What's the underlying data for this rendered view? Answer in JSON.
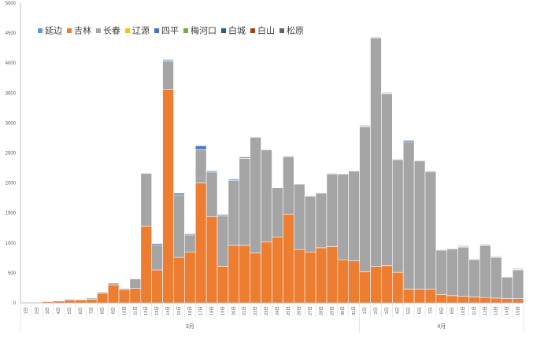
{
  "chart_data": {
    "type": "bar",
    "stacked": true,
    "ylim": [
      0,
      5000
    ],
    "yticks": [
      0,
      500,
      1000,
      1500,
      2000,
      2500,
      3000,
      3500,
      4000,
      4500,
      5000
    ],
    "grid": false,
    "legend_position": "top-left",
    "categories": [
      "1日",
      "2日",
      "3日",
      "4日",
      "5日",
      "6日",
      "7日",
      "8日",
      "9日",
      "10日",
      "11日",
      "12日",
      "13日",
      "14日",
      "15日",
      "16日",
      "17日",
      "18日",
      "19日",
      "20日",
      "21日",
      "22日",
      "23日",
      "24日",
      "25日",
      "26日",
      "27日",
      "28日",
      "29日",
      "30日",
      "31日",
      "1日",
      "2日",
      "3日",
      "4日",
      "5日",
      "6日",
      "7日",
      "8日",
      "9日",
      "10日",
      "11日",
      "12日",
      "13日",
      "14日",
      "15日"
    ],
    "month_groups": [
      {
        "label": "3月",
        "start": 0,
        "count": 31
      },
      {
        "label": "4月",
        "start": 31,
        "count": 15
      }
    ],
    "series": [
      {
        "name": "延边",
        "color": "#5b9bd5",
        "values": [
          0,
          0,
          0,
          0,
          0,
          0,
          0,
          0,
          0,
          0,
          0,
          0,
          0,
          0,
          0,
          0,
          0,
          0,
          0,
          0,
          0,
          0,
          0,
          0,
          0,
          0,
          0,
          0,
          0,
          0,
          0,
          0,
          0,
          0,
          0,
          0,
          0,
          0,
          0,
          0,
          0,
          0,
          0,
          0,
          0,
          0
        ]
      },
      {
        "name": "吉林",
        "color": "#ed7d31",
        "values": [
          5,
          5,
          20,
          30,
          50,
          50,
          60,
          160,
          300,
          220,
          240,
          1280,
          550,
          3560,
          760,
          850,
          2000,
          1440,
          610,
          960,
          960,
          830,
          1020,
          1100,
          1480,
          890,
          850,
          920,
          940,
          720,
          700,
          520,
          610,
          620,
          510,
          230,
          230,
          230,
          140,
          120,
          110,
          100,
          90,
          80,
          70,
          70
        ]
      },
      {
        "name": "长春",
        "color": "#a5a5a5",
        "values": [
          0,
          0,
          0,
          0,
          10,
          10,
          20,
          20,
          30,
          20,
          160,
          880,
          420,
          470,
          1040,
          280,
          560,
          740,
          840,
          1080,
          1450,
          1930,
          1530,
          820,
          960,
          1090,
          930,
          910,
          1210,
          1430,
          1500,
          2420,
          3810,
          2870,
          1880,
          2460,
          2140,
          1960,
          740,
          780,
          820,
          620,
          870,
          680,
          360,
          480
        ]
      },
      {
        "name": "辽源",
        "color": "#ffc000",
        "values": [
          0,
          0,
          0,
          0,
          0,
          0,
          0,
          0,
          0,
          0,
          0,
          0,
          0,
          0,
          0,
          0,
          0,
          0,
          0,
          0,
          0,
          0,
          0,
          0,
          0,
          0,
          0,
          0,
          0,
          0,
          0,
          0,
          0,
          0,
          0,
          0,
          0,
          0,
          0,
          0,
          0,
          0,
          0,
          0,
          0,
          0
        ]
      },
      {
        "name": "四平",
        "color": "#4472c4",
        "values": [
          0,
          0,
          0,
          0,
          0,
          0,
          0,
          0,
          0,
          0,
          0,
          10,
          20,
          20,
          30,
          20,
          60,
          20,
          20,
          20,
          20,
          10,
          10,
          0,
          10,
          0,
          10,
          10,
          10,
          0,
          0,
          10,
          10,
          10,
          10,
          20,
          10,
          10,
          10,
          10,
          10,
          10,
          10,
          10,
          0,
          10
        ]
      },
      {
        "name": "梅河口",
        "color": "#70ad47",
        "values": [
          0,
          0,
          0,
          0,
          0,
          0,
          0,
          0,
          0,
          0,
          0,
          0,
          0,
          0,
          0,
          0,
          0,
          0,
          0,
          0,
          0,
          0,
          0,
          0,
          0,
          0,
          0,
          0,
          0,
          0,
          0,
          0,
          0,
          0,
          0,
          0,
          0,
          0,
          0,
          0,
          0,
          0,
          0,
          0,
          0,
          0
        ]
      },
      {
        "name": "白城",
        "color": "#255e91",
        "values": [
          0,
          0,
          0,
          0,
          0,
          0,
          0,
          0,
          0,
          0,
          0,
          0,
          0,
          10,
          10,
          10,
          10,
          10,
          10,
          10,
          10,
          0,
          0,
          0,
          0,
          0,
          0,
          0,
          0,
          0,
          0,
          10,
          0,
          0,
          0,
          10,
          0,
          0,
          0,
          0,
          0,
          0,
          0,
          0,
          0,
          10
        ]
      },
      {
        "name": "白山",
        "color": "#9e480e",
        "values": [
          0,
          0,
          0,
          0,
          0,
          0,
          0,
          0,
          0,
          0,
          0,
          0,
          0,
          0,
          0,
          0,
          0,
          0,
          0,
          0,
          0,
          0,
          0,
          0,
          0,
          0,
          0,
          0,
          0,
          0,
          0,
          0,
          0,
          0,
          0,
          0,
          0,
          0,
          0,
          0,
          10,
          0,
          0,
          0,
          0,
          0
        ]
      },
      {
        "name": "松原",
        "color": "#636363",
        "values": [
          0,
          0,
          0,
          0,
          0,
          0,
          0,
          0,
          0,
          0,
          0,
          0,
          0,
          10,
          0,
          0,
          0,
          0,
          0,
          0,
          0,
          0,
          0,
          0,
          0,
          0,
          0,
          0,
          0,
          0,
          0,
          0,
          10,
          10,
          0,
          0,
          0,
          0,
          0,
          0,
          10,
          0,
          10,
          10,
          0,
          10
        ]
      }
    ]
  }
}
